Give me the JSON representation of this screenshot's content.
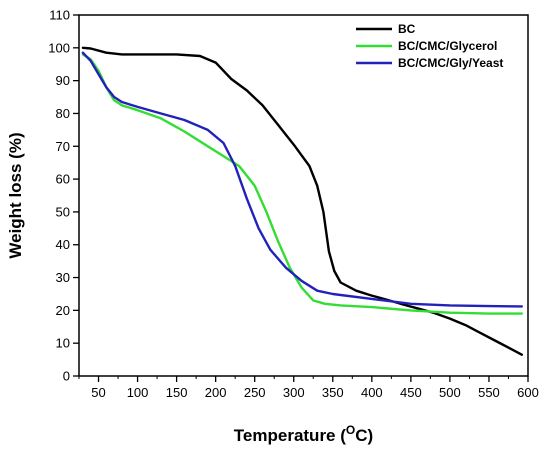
{
  "chart_data": {
    "type": "line",
    "xlabel_main": "Temperature (",
    "xlabel_sup": "O",
    "xlabel_tail": "C)",
    "ylabel": "Weight loss (%)",
    "xlim": [
      25,
      600
    ],
    "ylim": [
      0,
      110
    ],
    "x_ticks": [
      50,
      100,
      150,
      200,
      250,
      300,
      350,
      400,
      450,
      500,
      550,
      600
    ],
    "y_ticks": [
      0,
      10,
      20,
      30,
      40,
      50,
      60,
      70,
      80,
      90,
      100,
      110
    ],
    "legend_position": "top-right",
    "grid": false,
    "series": [
      {
        "name": "BC",
        "color": "#000000",
        "points": [
          [
            30,
            100
          ],
          [
            40,
            99.8
          ],
          [
            60,
            98.5
          ],
          [
            80,
            98
          ],
          [
            100,
            98
          ],
          [
            150,
            98
          ],
          [
            180,
            97.5
          ],
          [
            200,
            95.5
          ],
          [
            220,
            90.5
          ],
          [
            240,
            87
          ],
          [
            260,
            82.5
          ],
          [
            280,
            76.5
          ],
          [
            300,
            70.5
          ],
          [
            320,
            64
          ],
          [
            330,
            58
          ],
          [
            338,
            50
          ],
          [
            345,
            38
          ],
          [
            352,
            32
          ],
          [
            360,
            28.5
          ],
          [
            380,
            26
          ],
          [
            400,
            24.5
          ],
          [
            420,
            23.2
          ],
          [
            440,
            21.8
          ],
          [
            460,
            20.5
          ],
          [
            480,
            19.2
          ],
          [
            500,
            17.5
          ],
          [
            520,
            15.5
          ],
          [
            540,
            13
          ],
          [
            560,
            10.5
          ],
          [
            580,
            8
          ],
          [
            592,
            6.5
          ]
        ]
      },
      {
        "name": "BC/CMC/Glycerol",
        "color": "#33dd33",
        "points": [
          [
            30,
            98
          ],
          [
            40,
            96.5
          ],
          [
            50,
            93
          ],
          [
            60,
            88
          ],
          [
            70,
            84
          ],
          [
            80,
            82.5
          ],
          [
            100,
            81
          ],
          [
            130,
            78.5
          ],
          [
            160,
            74.5
          ],
          [
            190,
            70
          ],
          [
            210,
            67
          ],
          [
            230,
            64
          ],
          [
            250,
            58
          ],
          [
            265,
            50
          ],
          [
            280,
            41
          ],
          [
            295,
            33
          ],
          [
            310,
            27
          ],
          [
            325,
            23
          ],
          [
            340,
            22
          ],
          [
            360,
            21.5
          ],
          [
            400,
            21
          ],
          [
            450,
            20
          ],
          [
            500,
            19.3
          ],
          [
            550,
            19
          ],
          [
            592,
            19
          ]
        ]
      },
      {
        "name": "BC/CMC/Gly/Yeast",
        "color": "#2222bb",
        "points": [
          [
            30,
            98.5
          ],
          [
            40,
            96
          ],
          [
            50,
            92
          ],
          [
            60,
            88
          ],
          [
            70,
            85
          ],
          [
            80,
            83.5
          ],
          [
            100,
            82
          ],
          [
            130,
            80
          ],
          [
            160,
            78
          ],
          [
            190,
            75
          ],
          [
            210,
            71
          ],
          [
            225,
            64
          ],
          [
            240,
            54
          ],
          [
            255,
            45
          ],
          [
            270,
            38.5
          ],
          [
            290,
            33
          ],
          [
            310,
            29
          ],
          [
            330,
            26
          ],
          [
            350,
            25
          ],
          [
            400,
            23.5
          ],
          [
            450,
            22
          ],
          [
            500,
            21.5
          ],
          [
            550,
            21.3
          ],
          [
            592,
            21.2
          ]
        ]
      }
    ]
  }
}
